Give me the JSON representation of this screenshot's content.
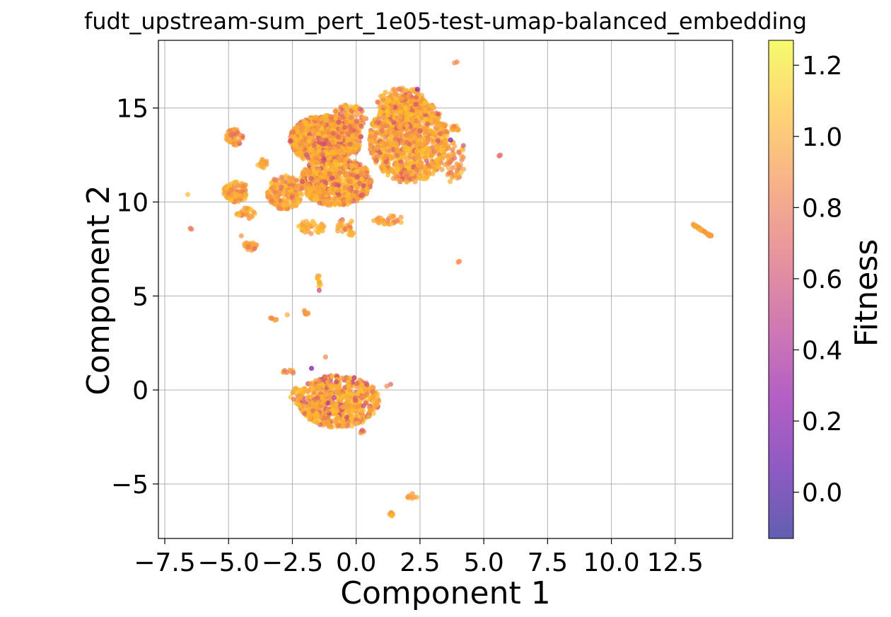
{
  "chart_data": {
    "type": "scatter",
    "title": "fudt_upstream-sum_pert_1e05-test-umap-balanced_embedding",
    "xlabel": "Component 1",
    "ylabel": "Component 2",
    "xlim": [
      -7.75,
      14.75
    ],
    "ylim": [
      -7.9,
      18.6
    ],
    "xticks": [
      -7.5,
      -5.0,
      -2.5,
      0.0,
      2.5,
      5.0,
      7.5,
      10.0,
      12.5
    ],
    "xtick_labels": [
      "−7.5",
      "−5.0",
      "−2.5",
      "0.0",
      "2.5",
      "5.0",
      "7.5",
      "10.0",
      "12.5"
    ],
    "yticks": [
      -5,
      0,
      5,
      10,
      15
    ],
    "ytick_labels": [
      "−5",
      "0",
      "5",
      "10",
      "15"
    ],
    "grid": true,
    "colorbar": {
      "label": "Fitness",
      "range": [
        -0.13,
        1.27
      ],
      "ticks": [
        0.0,
        0.2,
        0.4,
        0.6,
        0.8,
        1.0,
        1.2
      ],
      "tick_labels": [
        "0.0",
        "0.2",
        "0.4",
        "0.6",
        "0.8",
        "1.0",
        "1.2"
      ],
      "colormap": "plasma",
      "colors": [
        "#0d0887",
        "#5302a3",
        "#8b0aa5",
        "#b83289",
        "#db5c68",
        "#f48849",
        "#febd2a",
        "#f0f921"
      ]
    },
    "clusters": [
      {
        "x": [
          -2.6,
          0.2
        ],
        "y": [
          12.0,
          14.6
        ],
        "n": 900,
        "fitness": [
          0.55,
          1.1
        ]
      },
      {
        "x": [
          -2.2,
          0.6
        ],
        "y": [
          9.8,
          12.4
        ],
        "n": 650,
        "fitness": [
          0.55,
          1.1
        ]
      },
      {
        "x": [
          0.5,
          3.6
        ],
        "y": [
          11.0,
          15.6
        ],
        "n": 1000,
        "fitness": [
          0.6,
          1.1
        ]
      },
      {
        "x": [
          0.8,
          2.8
        ],
        "y": [
          14.6,
          16.1
        ],
        "n": 160,
        "fitness": [
          0.6,
          1.1
        ]
      },
      {
        "x": [
          -1.0,
          0.4
        ],
        "y": [
          13.5,
          15.2
        ],
        "n": 120,
        "fitness": [
          0.6,
          1.1
        ]
      },
      {
        "x": [
          -3.5,
          -2.1
        ],
        "y": [
          9.6,
          11.4
        ],
        "n": 170,
        "fitness": [
          0.7,
          1.1
        ]
      },
      {
        "x": [
          -5.2,
          -4.2
        ],
        "y": [
          10.0,
          11.1
        ],
        "n": 90,
        "fitness": [
          0.75,
          1.1
        ]
      },
      {
        "x": [
          -5.1,
          -4.4
        ],
        "y": [
          13.0,
          13.9
        ],
        "n": 45,
        "fitness": [
          0.6,
          1.05
        ]
      },
      {
        "x": [
          -4.7,
          -3.9
        ],
        "y": [
          9.1,
          9.7
        ],
        "n": 25,
        "fitness": [
          0.8,
          1.1
        ]
      },
      {
        "x": [
          -4.4,
          -3.9
        ],
        "y": [
          7.4,
          7.9
        ],
        "n": 22,
        "fitness": [
          0.7,
          1.05
        ]
      },
      {
        "x": [
          -3.9,
          -3.4
        ],
        "y": [
          11.8,
          12.3
        ],
        "n": 15,
        "fitness": [
          0.8,
          1.1
        ]
      },
      {
        "x": [
          -2.3,
          -1.2
        ],
        "y": [
          8.3,
          9.0
        ],
        "n": 35,
        "fitness": [
          0.8,
          1.1
        ]
      },
      {
        "x": [
          -0.8,
          0.0
        ],
        "y": [
          8.1,
          9.1
        ],
        "n": 28,
        "fitness": [
          0.6,
          1.05
        ]
      },
      {
        "x": [
          0.5,
          1.9
        ],
        "y": [
          8.8,
          9.3
        ],
        "n": 28,
        "fitness": [
          0.8,
          1.1
        ]
      },
      {
        "x": [
          3.2,
          4.3
        ],
        "y": [
          11.0,
          13.2
        ],
        "n": 60,
        "fitness": [
          0.7,
          1.1
        ]
      },
      {
        "x": [
          3.7,
          4.1
        ],
        "y": [
          13.8,
          14.1
        ],
        "n": 12,
        "fitness": [
          0.8,
          1.1
        ]
      },
      {
        "x": [
          -2.3,
          0.9
        ],
        "y": [
          -2.0,
          0.8
        ],
        "n": 650,
        "fitness": [
          0.45,
          1.1
        ]
      },
      {
        "x": [
          -2.6,
          -2.0
        ],
        "y": [
          -0.9,
          0.2
        ],
        "n": 20,
        "fitness": [
          0.7,
          1.1
        ]
      },
      {
        "x": [
          -2.9,
          -2.4
        ],
        "y": [
          0.8,
          1.2
        ],
        "n": 8,
        "fitness": [
          0.6,
          1.0
        ]
      },
      {
        "x": [
          -1.6,
          -1.3
        ],
        "y": [
          5.5,
          6.1
        ],
        "n": 10,
        "fitness": [
          0.85,
          1.1
        ]
      },
      {
        "x": [
          -3.4,
          -3.1
        ],
        "y": [
          3.7,
          3.9
        ],
        "n": 6,
        "fitness": [
          0.85,
          1.05
        ]
      },
      {
        "x": [
          -2.1,
          -1.8
        ],
        "y": [
          4.0,
          4.3
        ],
        "n": 6,
        "fitness": [
          0.6,
          0.95
        ]
      },
      {
        "x": [
          13.2,
          13.9
        ],
        "y": [
          8.2,
          8.8
        ],
        "n": 45,
        "fitness": [
          0.9,
          1.05
        ],
        "line": true
      },
      {
        "x": [
          1.3,
          1.5
        ],
        "y": [
          -6.7,
          -6.5
        ],
        "n": 8,
        "fitness": [
          0.85,
          1.05
        ]
      },
      {
        "x": [
          2.0,
          2.4
        ],
        "y": [
          -5.8,
          -5.5
        ],
        "n": 8,
        "fitness": [
          0.85,
          1.05
        ]
      },
      {
        "x": [
          0.1,
          0.3
        ],
        "y": [
          -2.3,
          -2.1
        ],
        "n": 5,
        "fitness": [
          0.6,
          0.9
        ]
      }
    ],
    "points": [
      {
        "x": -6.6,
        "y": 10.4,
        "f": 1.05
      },
      {
        "x": -6.5,
        "y": 8.6,
        "f": 0.75
      },
      {
        "x": -6.45,
        "y": 8.55,
        "f": 0.8
      },
      {
        "x": 3.85,
        "y": 17.4,
        "f": 0.9
      },
      {
        "x": 3.95,
        "y": 17.45,
        "f": 0.85
      },
      {
        "x": 5.6,
        "y": 12.45,
        "f": 0.7
      },
      {
        "x": 5.65,
        "y": 12.5,
        "f": 0.75
      },
      {
        "x": 4.0,
        "y": 6.8,
        "f": 0.85
      },
      {
        "x": 4.05,
        "y": 6.85,
        "f": 0.9
      },
      {
        "x": -1.45,
        "y": 5.3,
        "f": 0.55
      },
      {
        "x": -2.7,
        "y": 4.0,
        "f": 1.0
      },
      {
        "x": 1.35,
        "y": 0.3,
        "f": 0.7
      },
      {
        "x": 1.2,
        "y": 0.2,
        "f": 0.85
      },
      {
        "x": -1.2,
        "y": 1.75,
        "f": 0.85
      },
      {
        "x": -1.75,
        "y": 1.15,
        "f": 0.2
      },
      {
        "x": 3.7,
        "y": 13.3,
        "f": 0.2
      },
      {
        "x": 4.2,
        "y": 13.0,
        "f": 0.6
      },
      {
        "x": 2.4,
        "y": 16.0,
        "f": 0.3
      },
      {
        "x": -4.5,
        "y": 8.2,
        "f": 0.9
      }
    ]
  }
}
